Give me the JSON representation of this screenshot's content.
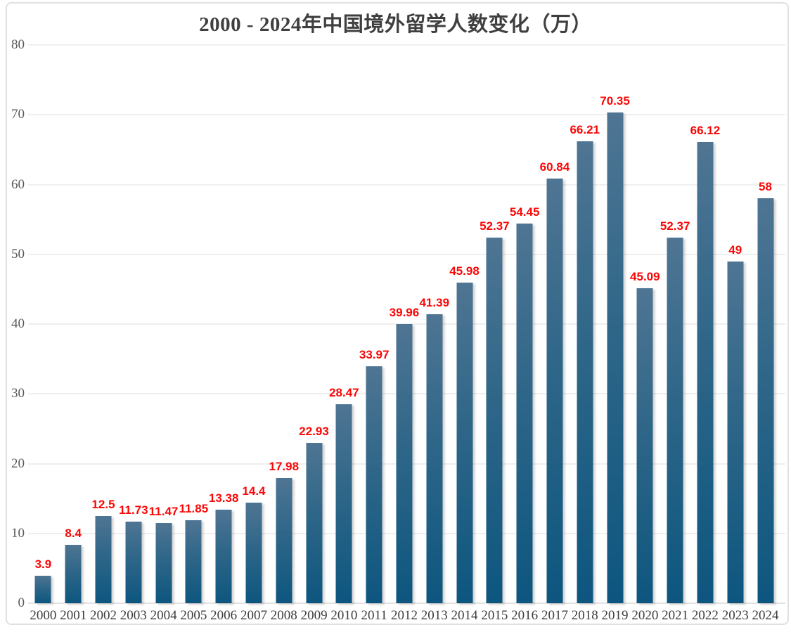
{
  "title": "2000 - 2024年中国境外留学人数变化（万）",
  "chart_data": {
    "type": "bar",
    "title": "2000 - 2024年中国境外留学人数变化（万）",
    "categories": [
      "2000",
      "2001",
      "2002",
      "2003",
      "2004",
      "2005",
      "2006",
      "2007",
      "2008",
      "2009",
      "2010",
      "2011",
      "2012",
      "2013",
      "2014",
      "2015",
      "2016",
      "2017",
      "2018",
      "2019",
      "2020",
      "2021",
      "2022",
      "2023",
      "2024"
    ],
    "values": [
      3.9,
      8.4,
      12.5,
      11.73,
      11.47,
      11.85,
      13.38,
      14.4,
      17.98,
      22.93,
      28.47,
      33.97,
      39.96,
      41.39,
      45.98,
      52.37,
      54.45,
      60.84,
      66.21,
      70.35,
      45.09,
      52.37,
      66.12,
      49,
      58
    ],
    "value_labels": [
      "3.9",
      "8.4",
      "12.5",
      "11.73",
      "11.47",
      "11.85",
      "13.38",
      "14.4",
      "17.98",
      "22.93",
      "28.47",
      "33.97",
      "39.96",
      "41.39",
      "45.98",
      "52.37",
      "54.45",
      "60.84",
      "66.21",
      "70.35",
      "45.09",
      "52.37",
      "66.12",
      "49",
      "58"
    ],
    "xlabel": "",
    "ylabel": "",
    "ylim": [
      0,
      80
    ],
    "yticks": [
      0,
      10,
      20,
      30,
      40,
      50,
      60,
      70,
      80
    ],
    "grid": true,
    "legend": false,
    "colors": {
      "bar_gradient_top": "#4f7593",
      "bar_gradient_mid": "#2e6688",
      "bar_gradient_bottom": "#0d567f",
      "value_label": "#fa0606",
      "y_axis_text": "#595959",
      "x_axis_text": "#3d3d3d",
      "title_text": "#3f3f3f",
      "gridline": "#efefef",
      "frame_border": "#e0e0e0"
    }
  }
}
